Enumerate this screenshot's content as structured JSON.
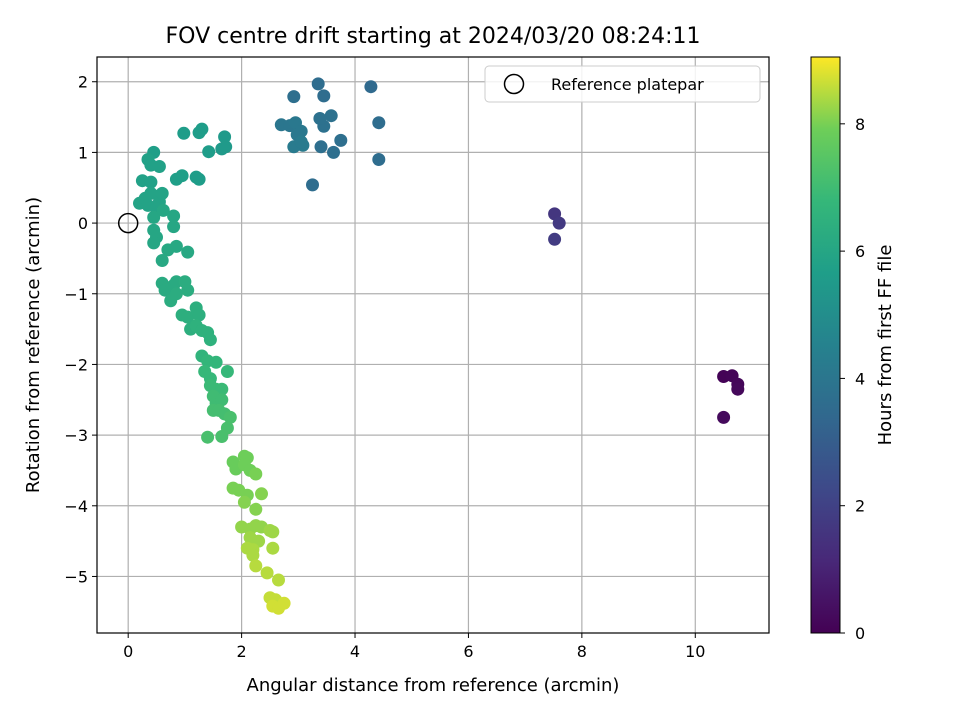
{
  "chart_data": {
    "type": "scatter",
    "title": "FOV centre drift starting at 2024/03/20 08:24:11",
    "xlabel": "Angular distance from reference (arcmin)",
    "ylabel": "Rotation from reference (arcmin)",
    "xlim": [
      -0.55,
      11.3
    ],
    "ylim": [
      -5.8,
      2.35
    ],
    "xticks": [
      0,
      2,
      4,
      6,
      8,
      10
    ],
    "yticks": [
      2,
      1,
      0,
      -1,
      -2,
      -3,
      -4,
      -5
    ],
    "xtick_labels": [
      "0",
      "2",
      "4",
      "6",
      "8",
      "10"
    ],
    "ytick_labels": [
      "2",
      "1",
      "0",
      "−1",
      "−2",
      "−3",
      "−4",
      "−5"
    ],
    "grid": true,
    "legend": {
      "position": "top-right",
      "label": "Reference platepar"
    },
    "reference": {
      "x": 0,
      "y": 0
    },
    "colorbar": {
      "label": "Hours from first FF file",
      "range": [
        0,
        9.05
      ],
      "ticks": [
        0,
        2,
        4,
        6,
        8
      ],
      "tick_labels": [
        "0",
        "2",
        "4",
        "6",
        "8"
      ],
      "colormap": "viridis"
    },
    "points": [
      [
        10.5,
        -2.17,
        0.05
      ],
      [
        10.65,
        -2.16,
        0.1
      ],
      [
        10.75,
        -2.28,
        0.15
      ],
      [
        10.75,
        -2.35,
        0.2
      ],
      [
        10.5,
        -2.75,
        0.25
      ],
      [
        7.52,
        0.13,
        1.6
      ],
      [
        7.6,
        0.0,
        1.7
      ],
      [
        7.52,
        -0.23,
        1.8
      ],
      [
        3.35,
        1.97,
        3.6
      ],
      [
        3.45,
        1.8,
        3.6
      ],
      [
        4.28,
        1.93,
        3.5
      ],
      [
        2.92,
        1.79,
        3.7
      ],
      [
        4.42,
        1.42,
        3.6
      ],
      [
        4.42,
        0.9,
        3.6
      ],
      [
        3.25,
        0.54,
        3.6
      ],
      [
        3.75,
        1.17,
        3.7
      ],
      [
        3.62,
        1.0,
        3.7
      ],
      [
        3.4,
        1.08,
        3.7
      ],
      [
        3.58,
        1.52,
        3.8
      ],
      [
        3.45,
        1.37,
        3.8
      ],
      [
        3.38,
        1.48,
        3.8
      ],
      [
        2.7,
        1.39,
        4.0
      ],
      [
        2.85,
        1.38,
        4.0
      ],
      [
        2.95,
        1.42,
        4.1
      ],
      [
        2.98,
        1.25,
        4.1
      ],
      [
        3.05,
        1.3,
        4.1
      ],
      [
        3.08,
        1.1,
        4.2
      ],
      [
        2.92,
        1.08,
        4.2
      ],
      [
        3.05,
        1.15,
        4.2
      ],
      [
        1.7,
        1.22,
        5.5
      ],
      [
        1.72,
        1.08,
        5.5
      ],
      [
        1.65,
        1.05,
        5.5
      ],
      [
        1.3,
        1.33,
        5.6
      ],
      [
        1.25,
        1.28,
        5.6
      ],
      [
        0.98,
        1.27,
        5.6
      ],
      [
        1.42,
        1.01,
        5.6
      ],
      [
        1.25,
        0.62,
        5.6
      ],
      [
        1.2,
        0.65,
        5.6
      ],
      [
        0.95,
        0.67,
        5.7
      ],
      [
        0.85,
        0.62,
        5.7
      ],
      [
        0.45,
        1.0,
        5.7
      ],
      [
        0.35,
        0.9,
        5.8
      ],
      [
        0.4,
        0.82,
        5.8
      ],
      [
        0.55,
        0.8,
        5.8
      ],
      [
        0.25,
        0.6,
        5.8
      ],
      [
        0.4,
        0.58,
        5.8
      ],
      [
        0.2,
        0.28,
        5.9
      ],
      [
        0.3,
        0.35,
        5.9
      ],
      [
        0.35,
        0.25,
        5.9
      ],
      [
        0.4,
        0.42,
        5.9
      ],
      [
        0.55,
        0.3,
        5.9
      ],
      [
        0.6,
        0.42,
        5.9
      ],
      [
        0.5,
        0.2,
        5.9
      ],
      [
        0.45,
        0.08,
        6.0
      ],
      [
        0.62,
        0.18,
        6.0
      ],
      [
        0.8,
        0.1,
        6.0
      ],
      [
        0.8,
        -0.05,
        6.0
      ],
      [
        0.45,
        -0.1,
        6.0
      ],
      [
        0.5,
        -0.2,
        6.0
      ],
      [
        0.45,
        -0.28,
        6.0
      ],
      [
        0.7,
        -0.38,
        6.1
      ],
      [
        0.85,
        -0.33,
        6.1
      ],
      [
        1.05,
        -0.41,
        6.1
      ],
      [
        0.6,
        -0.53,
        6.1
      ],
      [
        0.6,
        -0.85,
        6.2
      ],
      [
        0.65,
        -0.95,
        6.2
      ],
      [
        0.75,
        -0.98,
        6.2
      ],
      [
        0.8,
        -0.88,
        6.2
      ],
      [
        0.85,
        -0.83,
        6.2
      ],
      [
        0.75,
        -1.1,
        6.3
      ],
      [
        0.85,
        -1.0,
        6.3
      ],
      [
        1.0,
        -0.83,
        6.3
      ],
      [
        1.05,
        -0.95,
        6.3
      ],
      [
        0.95,
        -1.3,
        6.4
      ],
      [
        1.05,
        -1.33,
        6.4
      ],
      [
        1.2,
        -1.2,
        6.4
      ],
      [
        1.25,
        -1.3,
        6.4
      ],
      [
        1.1,
        -1.5,
        6.4
      ],
      [
        1.2,
        -1.45,
        6.5
      ],
      [
        1.3,
        -1.52,
        6.5
      ],
      [
        1.4,
        -1.55,
        6.5
      ],
      [
        1.45,
        -1.65,
        6.5
      ],
      [
        1.3,
        -1.88,
        6.6
      ],
      [
        1.4,
        -1.95,
        6.7
      ],
      [
        1.55,
        -1.97,
        6.7
      ],
      [
        1.35,
        -2.1,
        6.8
      ],
      [
        1.45,
        -2.2,
        6.8
      ],
      [
        1.75,
        -2.1,
        6.8
      ],
      [
        1.45,
        -2.3,
        6.9
      ],
      [
        1.55,
        -2.35,
        6.9
      ],
      [
        1.65,
        -2.35,
        6.9
      ],
      [
        1.5,
        -2.45,
        7.0
      ],
      [
        1.55,
        -2.55,
        7.0
      ],
      [
        1.65,
        -2.5,
        7.0
      ],
      [
        1.5,
        -2.65,
        7.1
      ],
      [
        1.6,
        -2.65,
        7.1
      ],
      [
        1.7,
        -2.7,
        7.1
      ],
      [
        1.8,
        -2.75,
        7.2
      ],
      [
        1.75,
        -2.9,
        7.2
      ],
      [
        1.65,
        -3.02,
        7.2
      ],
      [
        1.4,
        -3.03,
        7.2
      ],
      [
        1.85,
        -3.38,
        7.8
      ],
      [
        1.9,
        -3.48,
        7.8
      ],
      [
        2.05,
        -3.3,
        7.9
      ],
      [
        2.1,
        -3.32,
        7.9
      ],
      [
        2.05,
        -3.42,
        7.9
      ],
      [
        2.15,
        -3.5,
        7.9
      ],
      [
        2.25,
        -3.55,
        8.0
      ],
      [
        1.85,
        -3.75,
        8.0
      ],
      [
        1.95,
        -3.78,
        8.0
      ],
      [
        2.1,
        -3.85,
        8.0
      ],
      [
        2.05,
        -3.95,
        8.1
      ],
      [
        2.25,
        -4.05,
        8.1
      ],
      [
        2.35,
        -3.83,
        8.1
      ],
      [
        2.0,
        -4.3,
        8.2
      ],
      [
        2.15,
        -4.33,
        8.2
      ],
      [
        2.25,
        -4.28,
        8.2
      ],
      [
        2.35,
        -4.3,
        8.2
      ],
      [
        2.5,
        -4.35,
        8.3
      ],
      [
        2.55,
        -4.37,
        8.3
      ],
      [
        2.15,
        -4.45,
        8.3
      ],
      [
        2.3,
        -4.5,
        8.3
      ],
      [
        2.1,
        -4.6,
        8.4
      ],
      [
        2.2,
        -4.62,
        8.4
      ],
      [
        2.55,
        -4.6,
        8.4
      ],
      [
        2.2,
        -4.7,
        8.4
      ],
      [
        2.25,
        -4.85,
        8.5
      ],
      [
        2.45,
        -4.95,
        8.5
      ],
      [
        2.65,
        -5.05,
        8.5
      ],
      [
        2.5,
        -5.3,
        8.6
      ],
      [
        2.6,
        -5.33,
        8.6
      ],
      [
        2.55,
        -5.42,
        8.7
      ],
      [
        2.65,
        -5.45,
        8.7
      ],
      [
        2.75,
        -5.38,
        8.7
      ]
    ]
  }
}
